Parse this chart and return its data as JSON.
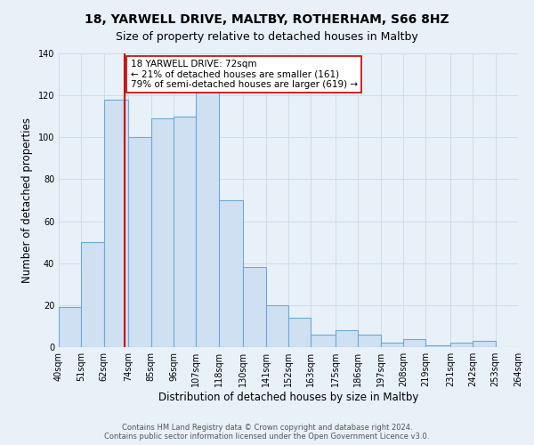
{
  "title": "18, YARWELL DRIVE, MALTBY, ROTHERHAM, S66 8HZ",
  "subtitle": "Size of property relative to detached houses in Maltby",
  "xlabel": "Distribution of detached houses by size in Maltby",
  "ylabel": "Number of detached properties",
  "bin_edges": [
    40,
    51,
    62,
    74,
    85,
    96,
    107,
    118,
    130,
    141,
    152,
    163,
    175,
    186,
    197,
    208,
    219,
    231,
    242,
    253,
    264
  ],
  "bar_heights": [
    19,
    50,
    118,
    100,
    109,
    110,
    133,
    70,
    38,
    20,
    14,
    6,
    8,
    6,
    2,
    4,
    1,
    2,
    3,
    0
  ],
  "bar_color": "#cfe0f3",
  "bar_edge_color": "#6aaad4",
  "property_line_x": 72,
  "property_line_color": "#cc0000",
  "annotation_box_title": "18 YARWELL DRIVE: 72sqm",
  "annotation_line1": "← 21% of detached houses are smaller (161)",
  "annotation_line2": "79% of semi-detached houses are larger (619) →",
  "annotation_box_edge_color": "#cc0000",
  "annotation_box_face_color": "#ffffff",
  "ylim": [
    0,
    140
  ],
  "yticks": [
    0,
    20,
    40,
    60,
    80,
    100,
    120,
    140
  ],
  "tick_labels": [
    "40sqm",
    "51sqm",
    "62sqm",
    "74sqm",
    "85sqm",
    "96sqm",
    "107sqm",
    "118sqm",
    "130sqm",
    "141sqm",
    "152sqm",
    "163sqm",
    "175sqm",
    "186sqm",
    "197sqm",
    "208sqm",
    "219sqm",
    "231sqm",
    "242sqm",
    "253sqm",
    "264sqm"
  ],
  "footer1": "Contains HM Land Registry data © Crown copyright and database right 2024.",
  "footer2": "Contains public sector information licensed under the Open Government Licence v3.0.",
  "background_color": "#e8f0f8",
  "grid_color": "#d0dce8",
  "title_fontsize": 10,
  "subtitle_fontsize": 9,
  "axis_label_fontsize": 8.5,
  "tick_fontsize": 7,
  "footer_fontsize": 6,
  "ann_fontsize": 7.5
}
